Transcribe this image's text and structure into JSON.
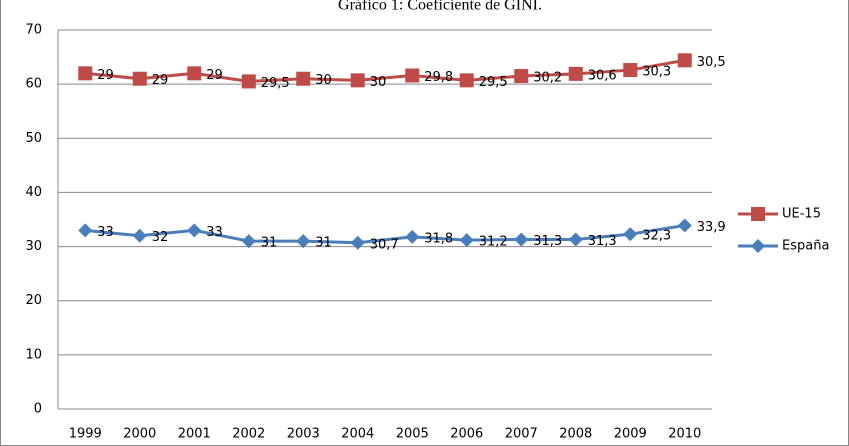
{
  "chart_data": {
    "type": "line",
    "stacked": true,
    "title": "Gráfico 1: Coeficiente de GINI.",
    "categories": [
      "1999",
      "2000",
      "2001",
      "2002",
      "2003",
      "2004",
      "2005",
      "2006",
      "2007",
      "2008",
      "2009",
      "2010"
    ],
    "series": [
      {
        "name": "España",
        "color": "#4a7ebb",
        "marker": "diamond",
        "values": [
          33,
          32,
          33,
          31,
          31,
          30.7,
          31.8,
          31.2,
          31.3,
          31.3,
          32.3,
          33.9
        ],
        "value_labels": [
          "33",
          "32",
          "33",
          "31",
          "31",
          "30,7",
          "31,8",
          "31,2",
          "31,3",
          "31,3",
          "32,3",
          "33,9"
        ]
      },
      {
        "name": "UE-15",
        "color": "#be4b48",
        "marker": "square",
        "values": [
          29,
          29,
          29,
          29.5,
          30,
          30,
          29.8,
          29.5,
          30.2,
          30.6,
          30.3,
          30.5
        ],
        "value_labels": [
          "29",
          "29",
          "29",
          "29,5",
          "30",
          "30",
          "29,8",
          "29,5",
          "30,2",
          "30,6",
          "30,3",
          "30,5"
        ]
      }
    ],
    "ylim": [
      0,
      70
    ],
    "yticks": [
      0,
      10,
      20,
      30,
      40,
      50,
      60,
      70
    ],
    "grid": true,
    "legend": "right"
  }
}
